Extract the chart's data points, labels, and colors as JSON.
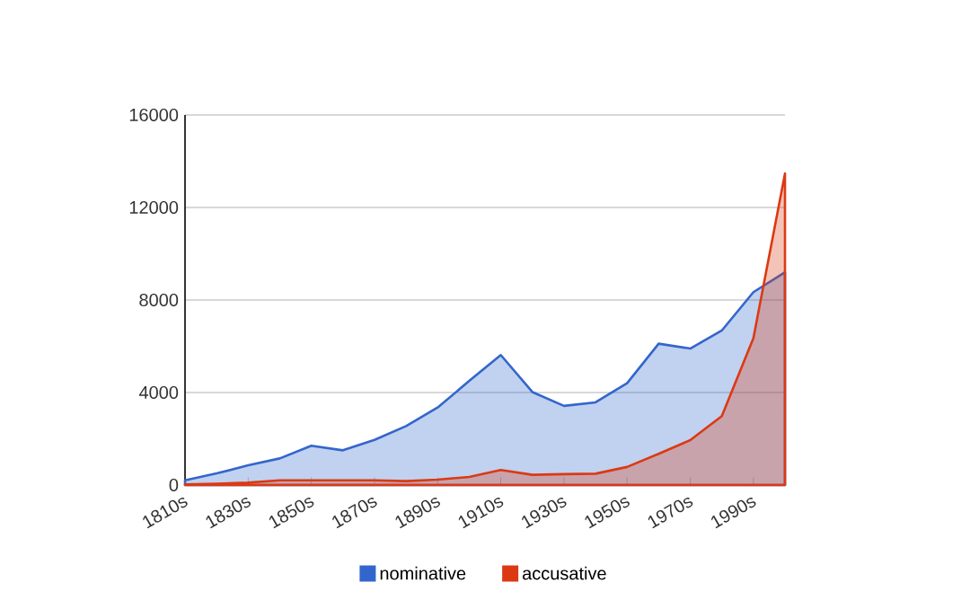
{
  "chart_data": {
    "type": "area",
    "categories": [
      "1810s",
      null,
      "1830s",
      null,
      "1850s",
      null,
      "1870s",
      null,
      "1890s",
      null,
      "1910s",
      null,
      "1930s",
      null,
      "1950s",
      null,
      "1970s",
      null,
      "1990s",
      null
    ],
    "series": [
      {
        "name": "nominative",
        "color": "#3366cc",
        "values": [
          200,
          500,
          850,
          1150,
          1700,
          1500,
          1950,
          2550,
          3350,
          4500,
          5620,
          4020,
          3420,
          3575,
          4400,
          6110,
          5900,
          6680,
          8340,
          9200
        ]
      },
      {
        "name": "accusative",
        "color": "#dc3912",
        "values": [
          30,
          60,
          100,
          200,
          200,
          200,
          200,
          170,
          230,
          350,
          650,
          440,
          470,
          490,
          780,
          1350,
          1940,
          2980,
          6350,
          13470
        ]
      }
    ],
    "ylim": [
      0,
      16000
    ],
    "yticks": [
      0,
      4000,
      8000,
      12000,
      16000
    ],
    "grid": "y",
    "legend": "bottom"
  }
}
